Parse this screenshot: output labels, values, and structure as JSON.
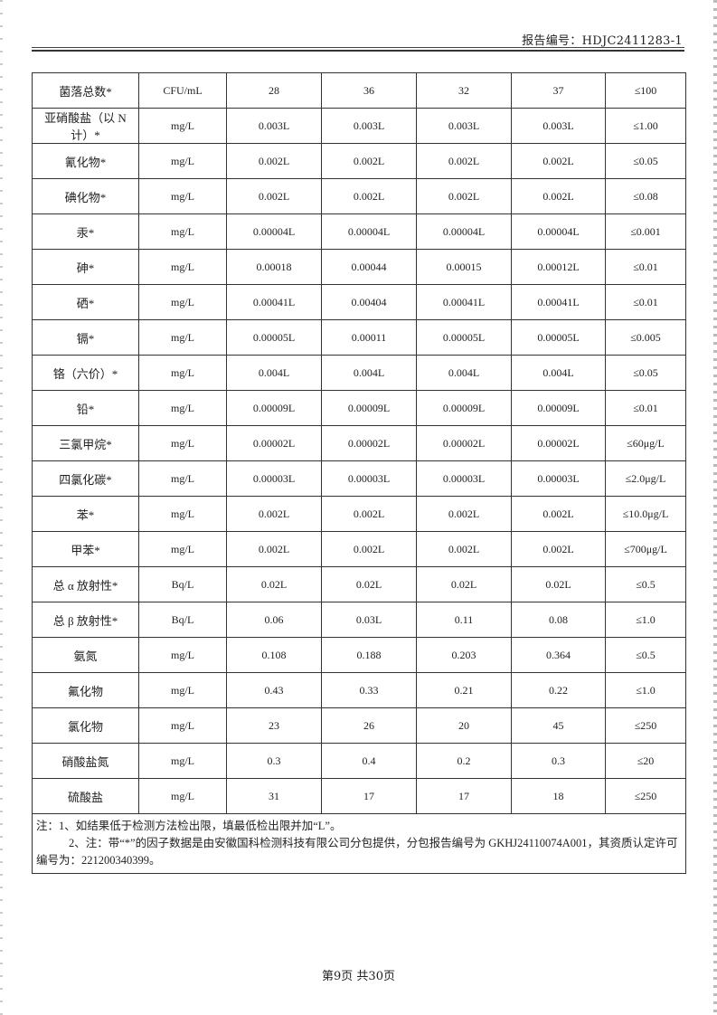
{
  "header": {
    "report_number": "报告编号：HDJC2411283-1"
  },
  "table": {
    "rows": [
      [
        "菌落总数*",
        "CFU/mL",
        "28",
        "36",
        "32",
        "37",
        "≤100"
      ],
      [
        "亚硝酸盐（以 N 计）*",
        "mg/L",
        "0.003L",
        "0.003L",
        "0.003L",
        "0.003L",
        "≤1.00"
      ],
      [
        "氰化物*",
        "mg/L",
        "0.002L",
        "0.002L",
        "0.002L",
        "0.002L",
        "≤0.05"
      ],
      [
        "碘化物*",
        "mg/L",
        "0.002L",
        "0.002L",
        "0.002L",
        "0.002L",
        "≤0.08"
      ],
      [
        "汞*",
        "mg/L",
        "0.00004L",
        "0.00004L",
        "0.00004L",
        "0.00004L",
        "≤0.001"
      ],
      [
        "砷*",
        "mg/L",
        "0.00018",
        "0.00044",
        "0.00015",
        "0.00012L",
        "≤0.01"
      ],
      [
        "硒*",
        "mg/L",
        "0.00041L",
        "0.00404",
        "0.00041L",
        "0.00041L",
        "≤0.01"
      ],
      [
        "镉*",
        "mg/L",
        "0.00005L",
        "0.00011",
        "0.00005L",
        "0.00005L",
        "≤0.005"
      ],
      [
        "铬（六价）*",
        "mg/L",
        "0.004L",
        "0.004L",
        "0.004L",
        "0.004L",
        "≤0.05"
      ],
      [
        "铅*",
        "mg/L",
        "0.00009L",
        "0.00009L",
        "0.00009L",
        "0.00009L",
        "≤0.01"
      ],
      [
        "三氯甲烷*",
        "mg/L",
        "0.00002L",
        "0.00002L",
        "0.00002L",
        "0.00002L",
        "≤60μg/L"
      ],
      [
        "四氯化碳*",
        "mg/L",
        "0.00003L",
        "0.00003L",
        "0.00003L",
        "0.00003L",
        "≤2.0μg/L"
      ],
      [
        "苯*",
        "mg/L",
        "0.002L",
        "0.002L",
        "0.002L",
        "0.002L",
        "≤10.0μg/L"
      ],
      [
        "甲苯*",
        "mg/L",
        "0.002L",
        "0.002L",
        "0.002L",
        "0.002L",
        "≤700μg/L"
      ],
      [
        "总 α 放射性*",
        "Bq/L",
        "0.02L",
        "0.02L",
        "0.02L",
        "0.02L",
        "≤0.5"
      ],
      [
        "总 β 放射性*",
        "Bq/L",
        "0.06",
        "0.03L",
        "0.11",
        "0.08",
        "≤1.0"
      ],
      [
        "氨氮",
        "mg/L",
        "0.108",
        "0.188",
        "0.203",
        "0.364",
        "≤0.5"
      ],
      [
        "氟化物",
        "mg/L",
        "0.43",
        "0.33",
        "0.21",
        "0.22",
        "≤1.0"
      ],
      [
        "氯化物",
        "mg/L",
        "23",
        "26",
        "20",
        "45",
        "≤250"
      ],
      [
        "硝酸盐氮",
        "mg/L",
        "0.3",
        "0.4",
        "0.2",
        "0.3",
        "≤20"
      ],
      [
        "硫酸盐",
        "mg/L",
        "31",
        "17",
        "17",
        "18",
        "≤250"
      ]
    ]
  },
  "notes": {
    "line1": "注：1、如结果低于检测方法检出限，填最低检出限并加“L”。",
    "line2": "2、注：带“*”的因子数据是由安徽国科检测科技有限公司分包提供，分包报告编号为 GKHJ24110074A001，其资质认定许可编号为：221200340399。"
  },
  "footer": {
    "page": "第9页  共30页"
  }
}
